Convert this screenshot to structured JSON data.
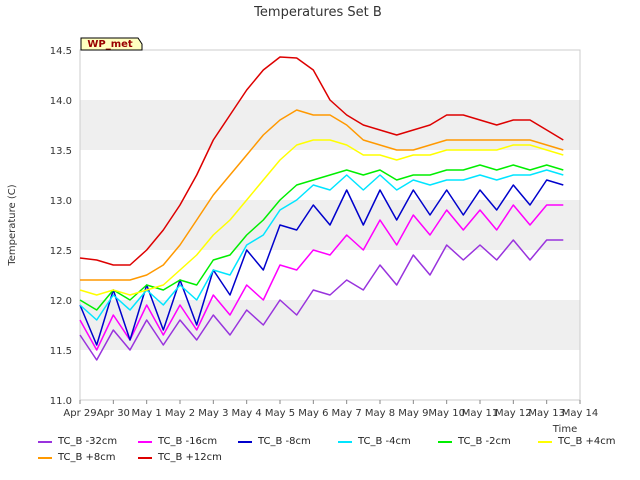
{
  "chart_data": {
    "type": "line",
    "title": "Temperatures Set B",
    "xlabel": "Time",
    "ylabel": "Temperature (C)",
    "ylim": [
      11.0,
      14.5
    ],
    "yticks": [
      11.0,
      11.5,
      12.0,
      12.5,
      13.0,
      13.5,
      14.0,
      14.5
    ],
    "xticks": [
      "Apr 29",
      "Apr 30",
      "May 1",
      "May 2",
      "May 3",
      "May 4",
      "May 5",
      "May 6",
      "May 7",
      "May 8",
      "May 9",
      "May 10",
      "May 11",
      "May 12",
      "May 13",
      "May 14"
    ],
    "grid": "alternating horizontal bands",
    "legend_position": "bottom",
    "annotation": "WP_met",
    "series": [
      {
        "name": "TC_B -32cm",
        "color": "#9933dd",
        "values": [
          [
            0,
            11.65
          ],
          [
            0.5,
            11.4
          ],
          [
            1,
            11.7
          ],
          [
            1.5,
            11.5
          ],
          [
            2,
            11.8
          ],
          [
            2.5,
            11.55
          ],
          [
            3,
            11.8
          ],
          [
            3.5,
            11.6
          ],
          [
            4,
            11.85
          ],
          [
            4.5,
            11.65
          ],
          [
            5,
            11.9
          ],
          [
            5.5,
            11.75
          ],
          [
            6,
            12.0
          ],
          [
            6.5,
            11.85
          ],
          [
            7,
            12.1
          ],
          [
            7.5,
            12.05
          ],
          [
            8,
            12.2
          ],
          [
            8.5,
            12.1
          ],
          [
            9,
            12.35
          ],
          [
            9.5,
            12.15
          ],
          [
            10,
            12.45
          ],
          [
            10.5,
            12.25
          ],
          [
            11,
            12.55
          ],
          [
            11.5,
            12.4
          ],
          [
            12,
            12.55
          ],
          [
            12.5,
            12.4
          ],
          [
            13,
            12.6
          ],
          [
            13.5,
            12.4
          ],
          [
            14,
            12.6
          ],
          [
            14.5,
            12.6
          ]
        ]
      },
      {
        "name": "TC_B -16cm",
        "color": "#ff00ff",
        "values": [
          [
            0,
            11.8
          ],
          [
            0.5,
            11.5
          ],
          [
            1,
            11.85
          ],
          [
            1.5,
            11.6
          ],
          [
            2,
            11.95
          ],
          [
            2.5,
            11.65
          ],
          [
            3,
            11.95
          ],
          [
            3.5,
            11.7
          ],
          [
            4,
            12.05
          ],
          [
            4.5,
            11.85
          ],
          [
            5,
            12.15
          ],
          [
            5.5,
            12.0
          ],
          [
            6,
            12.35
          ],
          [
            6.5,
            12.3
          ],
          [
            7,
            12.5
          ],
          [
            7.5,
            12.45
          ],
          [
            8,
            12.65
          ],
          [
            8.5,
            12.5
          ],
          [
            9,
            12.8
          ],
          [
            9.5,
            12.55
          ],
          [
            10,
            12.85
          ],
          [
            10.5,
            12.65
          ],
          [
            11,
            12.9
          ],
          [
            11.5,
            12.7
          ],
          [
            12,
            12.9
          ],
          [
            12.5,
            12.7
          ],
          [
            13,
            12.95
          ],
          [
            13.5,
            12.75
          ],
          [
            14,
            12.95
          ],
          [
            14.5,
            12.95
          ]
        ]
      },
      {
        "name": "TC_B -8cm",
        "color": "#0000cc",
        "values": [
          [
            0,
            11.95
          ],
          [
            0.5,
            11.55
          ],
          [
            1,
            12.1
          ],
          [
            1.5,
            11.6
          ],
          [
            2,
            12.15
          ],
          [
            2.5,
            11.7
          ],
          [
            3,
            12.2
          ],
          [
            3.5,
            11.75
          ],
          [
            4,
            12.3
          ],
          [
            4.5,
            12.05
          ],
          [
            5,
            12.5
          ],
          [
            5.5,
            12.3
          ],
          [
            6,
            12.75
          ],
          [
            6.5,
            12.7
          ],
          [
            7,
            12.95
          ],
          [
            7.5,
            12.75
          ],
          [
            8,
            13.1
          ],
          [
            8.5,
            12.75
          ],
          [
            9,
            13.1
          ],
          [
            9.5,
            12.8
          ],
          [
            10,
            13.1
          ],
          [
            10.5,
            12.85
          ],
          [
            11,
            13.1
          ],
          [
            11.5,
            12.85
          ],
          [
            12,
            13.1
          ],
          [
            12.5,
            12.9
          ],
          [
            13,
            13.15
          ],
          [
            13.5,
            12.95
          ],
          [
            14,
            13.2
          ],
          [
            14.5,
            13.15
          ]
        ]
      },
      {
        "name": "TC_B -4cm",
        "color": "#00e5ff",
        "values": [
          [
            0,
            11.95
          ],
          [
            0.5,
            11.8
          ],
          [
            1,
            12.05
          ],
          [
            1.5,
            11.9
          ],
          [
            2,
            12.1
          ],
          [
            2.5,
            11.95
          ],
          [
            3,
            12.15
          ],
          [
            3.5,
            12.0
          ],
          [
            4,
            12.3
          ],
          [
            4.5,
            12.25
          ],
          [
            5,
            12.55
          ],
          [
            5.5,
            12.65
          ],
          [
            6,
            12.9
          ],
          [
            6.5,
            13.0
          ],
          [
            7,
            13.15
          ],
          [
            7.5,
            13.1
          ],
          [
            8,
            13.25
          ],
          [
            8.5,
            13.1
          ],
          [
            9,
            13.25
          ],
          [
            9.5,
            13.1
          ],
          [
            10,
            13.2
          ],
          [
            10.5,
            13.15
          ],
          [
            11,
            13.2
          ],
          [
            11.5,
            13.2
          ],
          [
            12,
            13.25
          ],
          [
            12.5,
            13.2
          ],
          [
            13,
            13.25
          ],
          [
            13.5,
            13.25
          ],
          [
            14,
            13.3
          ],
          [
            14.5,
            13.25
          ]
        ]
      },
      {
        "name": "TC_B -2cm",
        "color": "#00ee00",
        "values": [
          [
            0,
            12.0
          ],
          [
            0.5,
            11.9
          ],
          [
            1,
            12.1
          ],
          [
            1.5,
            12.0
          ],
          [
            2,
            12.15
          ],
          [
            2.5,
            12.1
          ],
          [
            3,
            12.2
          ],
          [
            3.5,
            12.15
          ],
          [
            4,
            12.4
          ],
          [
            4.5,
            12.45
          ],
          [
            5,
            12.65
          ],
          [
            5.5,
            12.8
          ],
          [
            6,
            13.0
          ],
          [
            6.5,
            13.15
          ],
          [
            7,
            13.2
          ],
          [
            7.5,
            13.25
          ],
          [
            8,
            13.3
          ],
          [
            8.5,
            13.25
          ],
          [
            9,
            13.3
          ],
          [
            9.5,
            13.2
          ],
          [
            10,
            13.25
          ],
          [
            10.5,
            13.25
          ],
          [
            11,
            13.3
          ],
          [
            11.5,
            13.3
          ],
          [
            12,
            13.35
          ],
          [
            12.5,
            13.3
          ],
          [
            13,
            13.35
          ],
          [
            13.5,
            13.3
          ],
          [
            14,
            13.35
          ],
          [
            14.5,
            13.3
          ]
        ]
      },
      {
        "name": "TC_B +4cm",
        "color": "#ffff00",
        "values": [
          [
            0,
            12.1
          ],
          [
            0.5,
            12.05
          ],
          [
            1,
            12.1
          ],
          [
            1.5,
            12.05
          ],
          [
            2,
            12.1
          ],
          [
            2.5,
            12.15
          ],
          [
            3,
            12.3
          ],
          [
            3.5,
            12.45
          ],
          [
            4,
            12.65
          ],
          [
            4.5,
            12.8
          ],
          [
            5,
            13.0
          ],
          [
            5.5,
            13.2
          ],
          [
            6,
            13.4
          ],
          [
            6.5,
            13.55
          ],
          [
            7,
            13.6
          ],
          [
            7.5,
            13.6
          ],
          [
            8,
            13.55
          ],
          [
            8.5,
            13.45
          ],
          [
            9,
            13.45
          ],
          [
            9.5,
            13.4
          ],
          [
            10,
            13.45
          ],
          [
            10.5,
            13.45
          ],
          [
            11,
            13.5
          ],
          [
            11.5,
            13.5
          ],
          [
            12,
            13.5
          ],
          [
            12.5,
            13.5
          ],
          [
            13,
            13.55
          ],
          [
            13.5,
            13.55
          ],
          [
            14,
            13.5
          ],
          [
            14.5,
            13.45
          ]
        ]
      },
      {
        "name": "TC_B +8cm",
        "color": "#ff9900",
        "values": [
          [
            0,
            12.2
          ],
          [
            0.5,
            12.2
          ],
          [
            1,
            12.2
          ],
          [
            1.5,
            12.2
          ],
          [
            2,
            12.25
          ],
          [
            2.5,
            12.35
          ],
          [
            3,
            12.55
          ],
          [
            3.5,
            12.8
          ],
          [
            4,
            13.05
          ],
          [
            4.5,
            13.25
          ],
          [
            5,
            13.45
          ],
          [
            5.5,
            13.65
          ],
          [
            6,
            13.8
          ],
          [
            6.5,
            13.9
          ],
          [
            7,
            13.85
          ],
          [
            7.5,
            13.85
          ],
          [
            8,
            13.75
          ],
          [
            8.5,
            13.6
          ],
          [
            9,
            13.55
          ],
          [
            9.5,
            13.5
          ],
          [
            10,
            13.5
          ],
          [
            10.5,
            13.55
          ],
          [
            11,
            13.6
          ],
          [
            11.5,
            13.6
          ],
          [
            12,
            13.6
          ],
          [
            12.5,
            13.6
          ],
          [
            13,
            13.6
          ],
          [
            13.5,
            13.6
          ],
          [
            14,
            13.55
          ],
          [
            14.5,
            13.5
          ]
        ]
      },
      {
        "name": "TC_B +12cm",
        "color": "#dd0000",
        "values": [
          [
            0,
            12.42
          ],
          [
            0.5,
            12.4
          ],
          [
            1,
            12.35
          ],
          [
            1.5,
            12.35
          ],
          [
            2,
            12.5
          ],
          [
            2.5,
            12.7
          ],
          [
            3,
            12.95
          ],
          [
            3.5,
            13.25
          ],
          [
            4,
            13.6
          ],
          [
            4.5,
            13.85
          ],
          [
            5,
            14.1
          ],
          [
            5.5,
            14.3
          ],
          [
            6,
            14.43
          ],
          [
            6.5,
            14.42
          ],
          [
            7,
            14.3
          ],
          [
            7.5,
            14.0
          ],
          [
            8,
            13.85
          ],
          [
            8.5,
            13.75
          ],
          [
            9,
            13.7
          ],
          [
            9.5,
            13.65
          ],
          [
            10,
            13.7
          ],
          [
            10.5,
            13.75
          ],
          [
            11,
            13.85
          ],
          [
            11.5,
            13.85
          ],
          [
            12,
            13.8
          ],
          [
            12.5,
            13.75
          ],
          [
            13,
            13.8
          ],
          [
            13.5,
            13.8
          ],
          [
            14,
            13.7
          ],
          [
            14.5,
            13.6
          ]
        ]
      }
    ]
  }
}
